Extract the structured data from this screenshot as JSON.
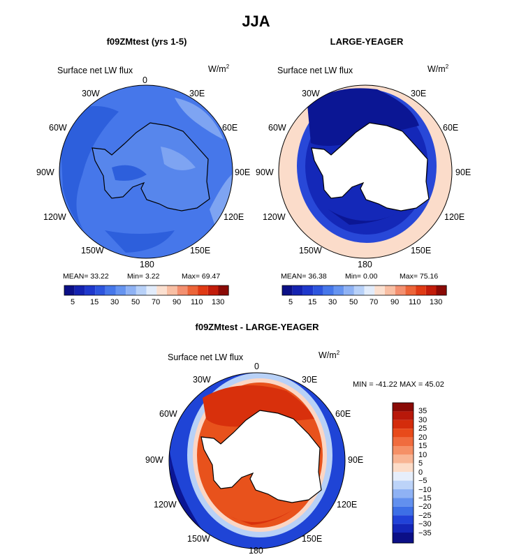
{
  "page_title": "JJA",
  "field_label": "Surface net LW flux",
  "units_base": "W/m",
  "units_sup": "2",
  "colors": {
    "ocean_blue": "#3d6fe6",
    "deep_blue": "#0b16a0",
    "mid_blue": "#2142d8",
    "light_blue": "#a9c6f5",
    "land": "#ffffff",
    "pale_red": "#fcd8c6",
    "red": "#e23a12",
    "dark_red": "#8a0a06"
  },
  "panels": [
    {
      "id": "test",
      "title": "f09ZMtest (yrs 1-5)",
      "field_label": "Surface net LW flux",
      "lon_labels": [
        "0",
        "30E",
        "60E",
        "90E",
        "120E",
        "150E",
        "180",
        "150W",
        "120W",
        "90W",
        "60W",
        "30W"
      ],
      "stats": {
        "mean_label": "MEAN=",
        "mean": "33.22",
        "min_label": "Min=",
        "min": "3.22",
        "max_label": "Max=",
        "max": "69.47"
      },
      "colorbar_labels": [
        "5",
        "15",
        "30",
        "50",
        "70",
        "90",
        "110",
        "130"
      ]
    },
    {
      "id": "obs",
      "title": "LARGE-YEAGER",
      "field_label": "Surface net LW flux",
      "lon_labels": [
        "0",
        "30E",
        "60E",
        "90E",
        "120E",
        "150E",
        "180",
        "150W",
        "120W",
        "90W",
        "60W",
        "30W"
      ],
      "stats": {
        "mean_label": "MEAN=",
        "mean": "36.38",
        "min_label": "Min=",
        "min": "0.00",
        "max_label": "Max=",
        "max": "75.16"
      },
      "colorbar_labels": [
        "5",
        "15",
        "30",
        "50",
        "70",
        "90",
        "110",
        "130"
      ]
    },
    {
      "id": "diff",
      "title": "f09ZMtest - LARGE-YEAGER",
      "field_label": "Surface net LW flux",
      "lon_labels": [
        "0",
        "30E",
        "60E",
        "90E",
        "120E",
        "150E",
        "180",
        "150W",
        "120W",
        "90W",
        "60W",
        "30W"
      ],
      "minmax_text": "MIN = -41.22 MAX =  45.02",
      "colorbar_labels": [
        "35",
        "30",
        "25",
        "20",
        "15",
        "10",
        "5",
        "0",
        "−5",
        "−10",
        "−15",
        "−20",
        "−25",
        "−30",
        "−35"
      ]
    }
  ],
  "chart_data": [
    {
      "type": "heatmap",
      "title": "f09ZMtest (yrs 1-5)",
      "field": "Surface net LW flux",
      "units": "W/m2",
      "projection": "south polar stereographic",
      "mean": 33.22,
      "min": 3.22,
      "max": 69.47,
      "contour_levels": [
        5,
        10,
        15,
        20,
        25,
        30,
        40,
        50,
        60,
        70,
        80,
        90,
        100,
        110,
        120,
        130
      ]
    },
    {
      "type": "heatmap",
      "title": "LARGE-YEAGER",
      "field": "Surface net LW flux",
      "units": "W/m2",
      "projection": "south polar stereographic",
      "mean": 36.38,
      "min": 0.0,
      "max": 75.16,
      "contour_levels": [
        5,
        10,
        15,
        20,
        25,
        30,
        40,
        50,
        60,
        70,
        80,
        90,
        100,
        110,
        120,
        130
      ]
    },
    {
      "type": "heatmap",
      "title": "f09ZMtest - LARGE-YEAGER",
      "field": "Surface net LW flux",
      "units": "W/m2",
      "projection": "south polar stereographic",
      "min": -41.22,
      "max": 45.02,
      "contour_levels": [
        -35,
        -30,
        -25,
        -20,
        -15,
        -10,
        -5,
        0,
        5,
        10,
        15,
        20,
        25,
        30,
        35
      ]
    }
  ]
}
